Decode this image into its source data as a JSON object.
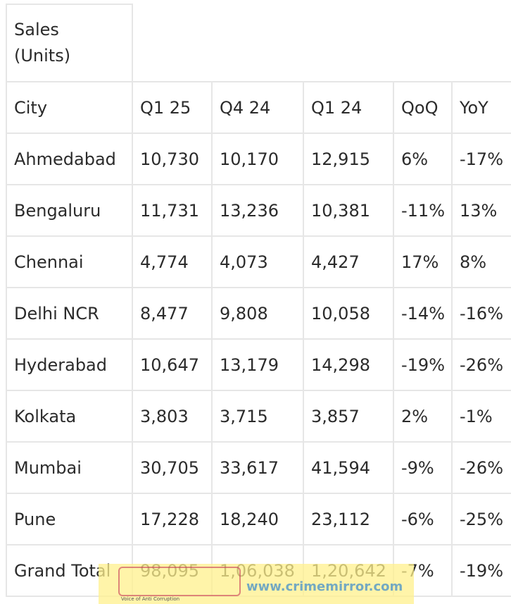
{
  "table": {
    "caption": "Sales (Units)",
    "columns": [
      "City",
      "Q1 25",
      "Q4 24",
      "Q1 24",
      "QoQ",
      "YoY"
    ],
    "rows": [
      [
        "Ahmedabad",
        "10,730",
        "10,170",
        "12,915",
        "6%",
        "-17%"
      ],
      [
        "Bengaluru",
        "11,731",
        "13,236",
        "10,381",
        "-11%",
        "13%"
      ],
      [
        "Chennai",
        "4,774",
        "4,073",
        "4,427",
        "17%",
        "8%"
      ],
      [
        "Delhi NCR",
        "8,477",
        "9,808",
        "10,058",
        "-14%",
        "-16%"
      ],
      [
        "Hyderabad",
        "10,647",
        "13,179",
        "14,298",
        "-19%",
        "-26%"
      ],
      [
        "Kolkata",
        "3,803",
        "3,715",
        "3,857",
        "2%",
        "-1%"
      ],
      [
        "Mumbai",
        "30,705",
        "33,617",
        "41,594",
        "-9%",
        "-26%"
      ],
      [
        "Pune",
        "17,228",
        "18,240",
        "23,112",
        "-6%",
        "-25%"
      ],
      [
        "Grand Total",
        "98,095",
        "1,06,038",
        "1,20,642",
        "-7%",
        "-19%"
      ]
    ]
  },
  "watermark": {
    "url": "www.crimemirror.com",
    "tagline": "Voice of Anti Corruption"
  }
}
